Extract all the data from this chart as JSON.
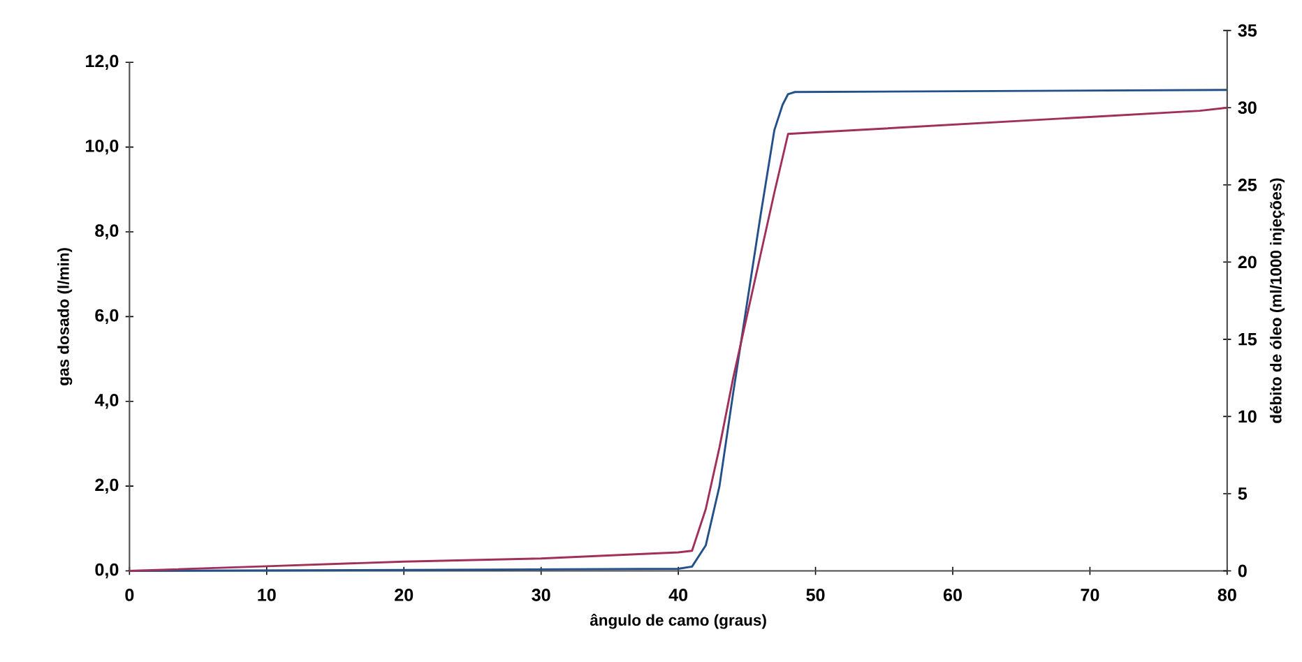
{
  "chart_data": {
    "type": "line",
    "xlabel": "ângulo de camo (graus)",
    "ylabel": "gas dosado (l/min)",
    "y2label": "débito de óleo (ml/1000 injeções)",
    "xlim": [
      0,
      80
    ],
    "xticks": [
      0,
      10,
      20,
      30,
      40,
      50,
      60,
      70,
      80
    ],
    "ylim": [
      0,
      12
    ],
    "yticks": [
      {
        "value": 0,
        "label": "0,0"
      },
      {
        "value": 2,
        "label": "2,0"
      },
      {
        "value": 4,
        "label": "4,0"
      },
      {
        "value": 6,
        "label": "6,0"
      },
      {
        "value": 8,
        "label": "8,0"
      },
      {
        "value": 10,
        "label": "10,0"
      },
      {
        "value": 12,
        "label": "12,0"
      }
    ],
    "y2lim": [
      0,
      35
    ],
    "y2ticks": [
      0,
      5,
      10,
      15,
      20,
      25,
      30,
      35
    ],
    "series": [
      {
        "color": "#24508a",
        "x": [
          0,
          20,
          40,
          41,
          42,
          43,
          44,
          45,
          46,
          47,
          47.6,
          48,
          48.5,
          80
        ],
        "values": [
          0,
          0.02,
          0.05,
          0.1,
          0.6,
          2.0,
          4.2,
          6.3,
          8.4,
          10.4,
          11.0,
          11.25,
          11.3,
          11.35
        ]
      },
      {
        "color": "#a0305a",
        "axis": "y2",
        "x": [
          0,
          10,
          20,
          30,
          40,
          41,
          42,
          43,
          44,
          45,
          46,
          47,
          48,
          50,
          60,
          70,
          78,
          80
        ],
        "values": [
          0,
          0.3,
          0.6,
          0.8,
          1.2,
          1.3,
          4.0,
          8.0,
          12.5,
          16.5,
          20.5,
          24.5,
          28.3,
          28.4,
          28.9,
          29.4,
          29.8,
          30.0
        ]
      }
    ]
  }
}
